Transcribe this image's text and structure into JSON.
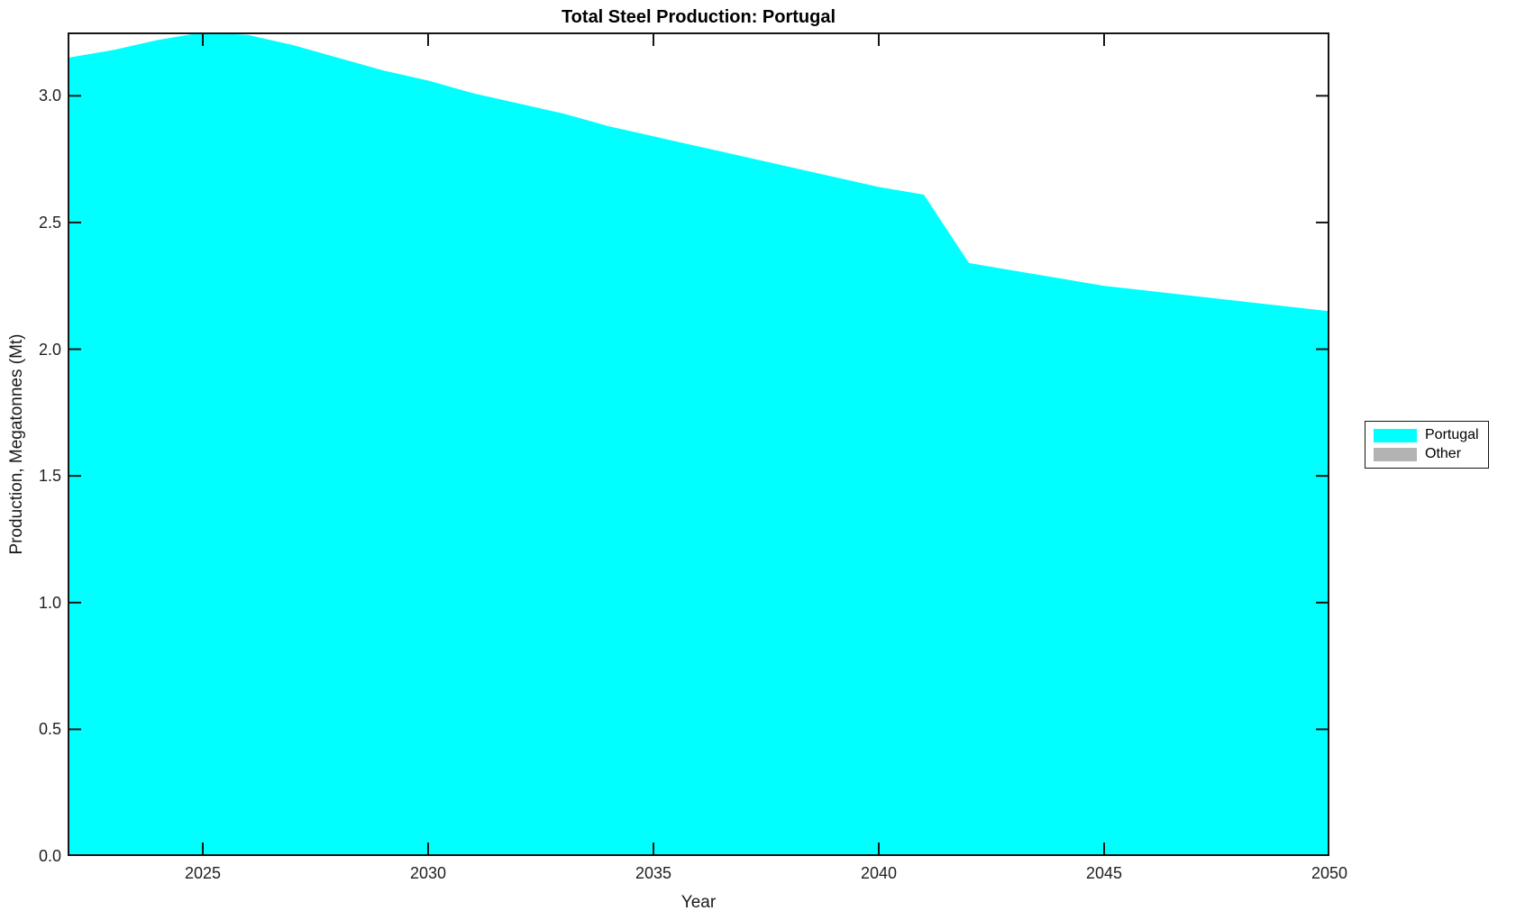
{
  "chart": {
    "title": "Total Steel Production: Portugal",
    "xlabel": "Year",
    "ylabel": "Production, Megatonnes (Mt)"
  },
  "chart_data": {
    "type": "area",
    "stacked": true,
    "title": "Total Steel Production: Portugal",
    "xlabel": "Year",
    "ylabel": "Production, Megatonnes (Mt)",
    "x": [
      2022,
      2023,
      2024,
      2025,
      2026,
      2027,
      2028,
      2029,
      2030,
      2031,
      2032,
      2033,
      2034,
      2035,
      2036,
      2037,
      2038,
      2039,
      2040,
      2041,
      2042,
      2043,
      2044,
      2045,
      2046,
      2047,
      2048,
      2049,
      2050
    ],
    "series": [
      {
        "name": "Portugal",
        "color": "#00FFFF",
        "values": [
          3.15,
          3.18,
          3.22,
          3.25,
          3.24,
          3.2,
          3.15,
          3.1,
          3.06,
          3.01,
          2.97,
          2.93,
          2.88,
          2.84,
          2.8,
          2.76,
          2.72,
          2.68,
          2.64,
          2.61,
          2.34,
          2.31,
          2.28,
          2.25,
          2.23,
          2.21,
          2.19,
          2.17,
          2.15
        ]
      },
      {
        "name": "Other",
        "color": "#B3B3B3",
        "values": [
          0,
          0,
          0,
          0,
          0,
          0,
          0,
          0,
          0,
          0,
          0,
          0,
          0,
          0,
          0,
          0,
          0,
          0,
          0,
          0,
          0,
          0,
          0,
          0,
          0,
          0,
          0,
          0,
          0
        ]
      }
    ],
    "xlim": [
      2022,
      2050
    ],
    "ylim": [
      0,
      3.25
    ],
    "x_ticks": [
      2025,
      2030,
      2035,
      2040,
      2045,
      2050
    ],
    "y_tick_values": [
      0,
      0.5,
      1.0,
      1.5,
      2.0,
      2.5,
      3.0
    ],
    "y_tick_labels": [
      "0.0",
      "0.5",
      "1.0",
      "1.5",
      "2.0",
      "2.5",
      "3.0"
    ],
    "grid": false,
    "legend_position": "outside-right",
    "axis_color": "#151515",
    "background_color": "#ffffff"
  }
}
